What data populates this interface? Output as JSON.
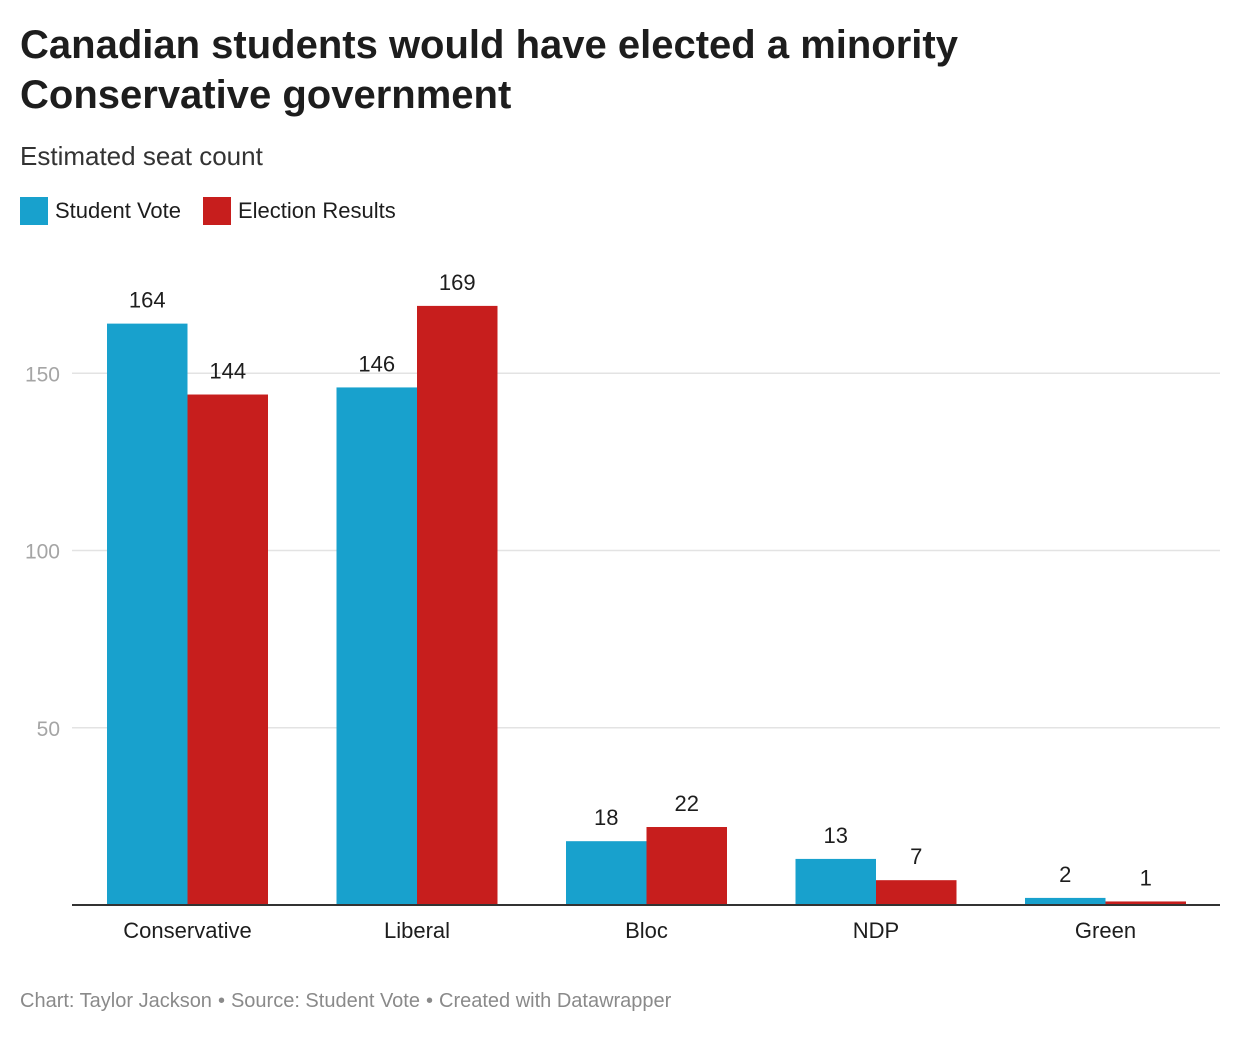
{
  "title": "Canadian students would have elected a minority Conservative government",
  "subtitle": "Estimated seat count",
  "footer": {
    "chart_credit": "Chart: Taylor Jackson",
    "source": "Source: Student Vote",
    "tool": "Created with Datawrapper",
    "separator": "•"
  },
  "chart_data": {
    "type": "bar",
    "categories": [
      "Conservative",
      "Liberal",
      "Bloc",
      "NDP",
      "Green"
    ],
    "series": [
      {
        "name": "Student Vote",
        "color": "#18a1cd",
        "values": [
          164,
          146,
          18,
          13,
          2
        ]
      },
      {
        "name": "Election Results",
        "color": "#c71e1d",
        "values": [
          144,
          169,
          22,
          7,
          1
        ]
      }
    ],
    "yticks": [
      50,
      100,
      150
    ],
    "ylim": [
      0,
      180
    ],
    "grid": true,
    "legend_position": "top-left",
    "data_labels": true
  }
}
